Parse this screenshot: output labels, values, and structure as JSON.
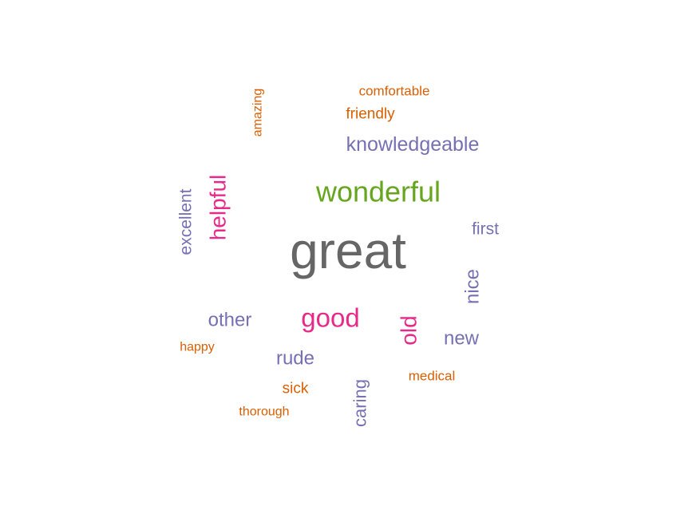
{
  "chart_data": {
    "type": "wordcloud",
    "title": "",
    "palette": {
      "gray": "#666666",
      "green": "#66a61e",
      "magenta": "#e7298a",
      "purple": "#7570b3",
      "orange": "#d95f02"
    },
    "words": [
      {
        "text": "great",
        "color": "gray",
        "orientation": "horizontal",
        "rank": 1
      },
      {
        "text": "wonderful",
        "color": "green",
        "orientation": "horizontal",
        "rank": 2
      },
      {
        "text": "good",
        "color": "magenta",
        "orientation": "horizontal",
        "rank": 3
      },
      {
        "text": "helpful",
        "color": "magenta",
        "orientation": "vertical",
        "rank": 4
      },
      {
        "text": "old",
        "color": "magenta",
        "orientation": "vertical",
        "rank": 5
      },
      {
        "text": "knowledgeable",
        "color": "purple",
        "orientation": "horizontal",
        "rank": 6
      },
      {
        "text": "other",
        "color": "purple",
        "orientation": "horizontal",
        "rank": 7
      },
      {
        "text": "rude",
        "color": "purple",
        "orientation": "horizontal",
        "rank": 8
      },
      {
        "text": "nice",
        "color": "purple",
        "orientation": "vertical",
        "rank": 9
      },
      {
        "text": "new",
        "color": "purple",
        "orientation": "horizontal",
        "rank": 10
      },
      {
        "text": "caring",
        "color": "purple",
        "orientation": "vertical",
        "rank": 11
      },
      {
        "text": "excellent",
        "color": "purple",
        "orientation": "vertical",
        "rank": 12
      },
      {
        "text": "first",
        "color": "purple",
        "orientation": "horizontal",
        "rank": 13
      },
      {
        "text": "friendly",
        "color": "orange",
        "orientation": "horizontal",
        "rank": 14
      },
      {
        "text": "sick",
        "color": "orange",
        "orientation": "horizontal",
        "rank": 15
      },
      {
        "text": "comfortable",
        "color": "orange",
        "orientation": "horizontal",
        "rank": 16
      },
      {
        "text": "medical",
        "color": "orange",
        "orientation": "horizontal",
        "rank": 17
      },
      {
        "text": "amazing",
        "color": "orange",
        "orientation": "vertical",
        "rank": 18
      },
      {
        "text": "happy",
        "color": "orange",
        "orientation": "horizontal",
        "rank": 19
      },
      {
        "text": "thorough",
        "color": "orange",
        "orientation": "horizontal",
        "rank": 20
      }
    ]
  }
}
